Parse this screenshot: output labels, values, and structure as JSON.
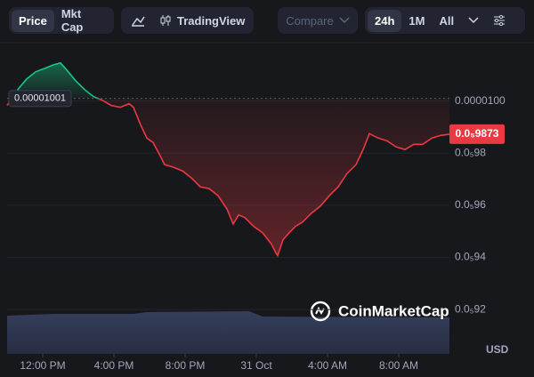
{
  "toolbar": {
    "view_tabs": [
      "Price",
      "Mkt Cap"
    ],
    "chart_tool": "TradingView",
    "compare": "Compare",
    "ranges": [
      "24h",
      "1M",
      "All"
    ]
  },
  "chart_data": {
    "type": "line",
    "x": [
      10.0,
      10.6,
      11.1,
      11.6,
      12.1,
      12.6,
      13.0,
      13.35,
      13.85,
      14.35,
      14.85,
      15.35,
      15.85,
      16.35,
      16.85,
      17.1,
      17.5,
      17.85,
      18.2,
      18.6,
      18.85,
      19.35,
      19.85,
      20.35,
      20.85,
      21.35,
      21.85,
      22.35,
      22.7,
      23.0,
      23.35,
      23.85,
      24.35,
      24.85,
      25.1,
      25.2,
      25.5,
      25.85,
      26.2,
      26.6,
      27.1,
      27.6,
      28.1,
      28.6,
      29.1,
      29.6,
      30.0,
      30.35,
      30.85,
      31.35,
      31.85,
      32.35,
      32.85,
      33.35,
      33.85,
      34.35,
      34.85
    ],
    "values": [
      9.983e-06,
      1.0044e-05,
      1.0085e-05,
      1.0112e-05,
      1.0125e-05,
      1.0139e-05,
      1.0146e-05,
      1.0119e-05,
      1.0078e-05,
      1.0044e-05,
      1.0017e-05,
      1.0003e-05,
      9.983e-06,
      9.976e-06,
      9.99e-06,
      9.976e-06,
      9.908e-06,
      9.858e-06,
      9.841e-06,
      9.79e-06,
      9.756e-06,
      9.746e-06,
      9.732e-06,
      9.705e-06,
      9.671e-06,
      9.664e-06,
      9.637e-06,
      9.586e-06,
      9.528e-06,
      9.563e-06,
      9.553e-06,
      9.519e-06,
      9.495e-06,
      9.451e-06,
      9.417e-06,
      9.407e-06,
      9.468e-06,
      9.495e-06,
      9.519e-06,
      9.536e-06,
      9.57e-06,
      9.597e-06,
      9.637e-06,
      9.671e-06,
      9.722e-06,
      9.756e-06,
      9.814e-06,
      9.875e-06,
      9.858e-06,
      9.847e-06,
      9.824e-06,
      9.814e-06,
      9.834e-06,
      9.834e-06,
      9.858e-06,
      9.868e-06,
      9.873e-06
    ],
    "up_color": "#16c784",
    "down_color": "#ea3943",
    "baseline": {
      "value": 1.001e-05,
      "label": "0.00001001"
    },
    "price_tag": {
      "value": 9.873e-06,
      "label": "0.0₅9873"
    },
    "xlim": [
      10,
      34.85
    ],
    "xticks": [
      {
        "value": 12,
        "label": "12:00 PM"
      },
      {
        "value": 16,
        "label": "4:00 PM"
      },
      {
        "value": 20,
        "label": "8:00 PM"
      },
      {
        "value": 24,
        "label": "31 Oct"
      },
      {
        "value": 28,
        "label": "4:00 AM"
      },
      {
        "value": 32,
        "label": "8:00 AM"
      }
    ],
    "ylim": [
      9.03e-06,
      1.02e-05
    ],
    "yticks": [
      {
        "value": 1e-05,
        "label": "0.0000100"
      },
      {
        "value": 9.8e-06,
        "label": "0.0₅98"
      },
      {
        "value": 9.6e-06,
        "label": "0.0₅96"
      },
      {
        "value": 9.4e-06,
        "label": "0.0₅94"
      },
      {
        "value": 9.2e-06,
        "label": "0.0₅92"
      }
    ],
    "grid": true,
    "y_axis_label": "USD",
    "watermark": "CoinMarketCap"
  }
}
